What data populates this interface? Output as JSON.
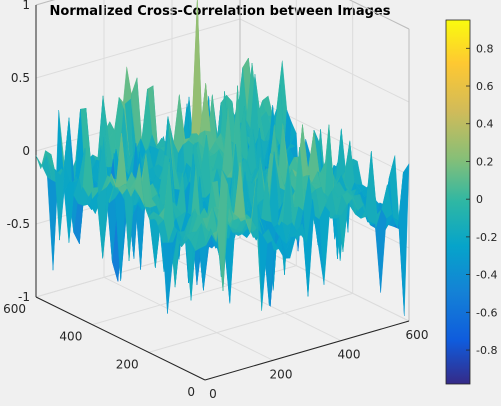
{
  "chart_data": {
    "type": "surface",
    "title": "Normalized Cross-Correlation between Images",
    "xlabel": "",
    "ylabel": "",
    "zlabel": "",
    "x_range": [
      0,
      600
    ],
    "y_range": [
      0,
      600
    ],
    "zlim": [
      -1,
      1
    ],
    "x_ticks": [
      "0",
      "200",
      "400",
      "600"
    ],
    "y_ticks": [
      "0",
      "200",
      "400",
      "600"
    ],
    "z_ticks": [
      "-1",
      "-0.5",
      "0",
      "0.5",
      "1"
    ],
    "grid": true,
    "colormap": "parula",
    "colorbar": {
      "range": [
        -0.98,
        0.95
      ],
      "ticks": [
        "-0.8",
        "-0.6",
        "-0.4",
        "-0.2",
        "0",
        "0.2",
        "0.4",
        "0.6",
        "0.8"
      ],
      "tick_values": [
        -0.8,
        -0.6,
        -0.4,
        -0.2,
        0,
        0.2,
        0.4,
        0.6,
        0.8
      ]
    },
    "features": {
      "peak_value": 0.95,
      "minimum_value": -0.98,
      "baseline_value": -0.15
    }
  }
}
